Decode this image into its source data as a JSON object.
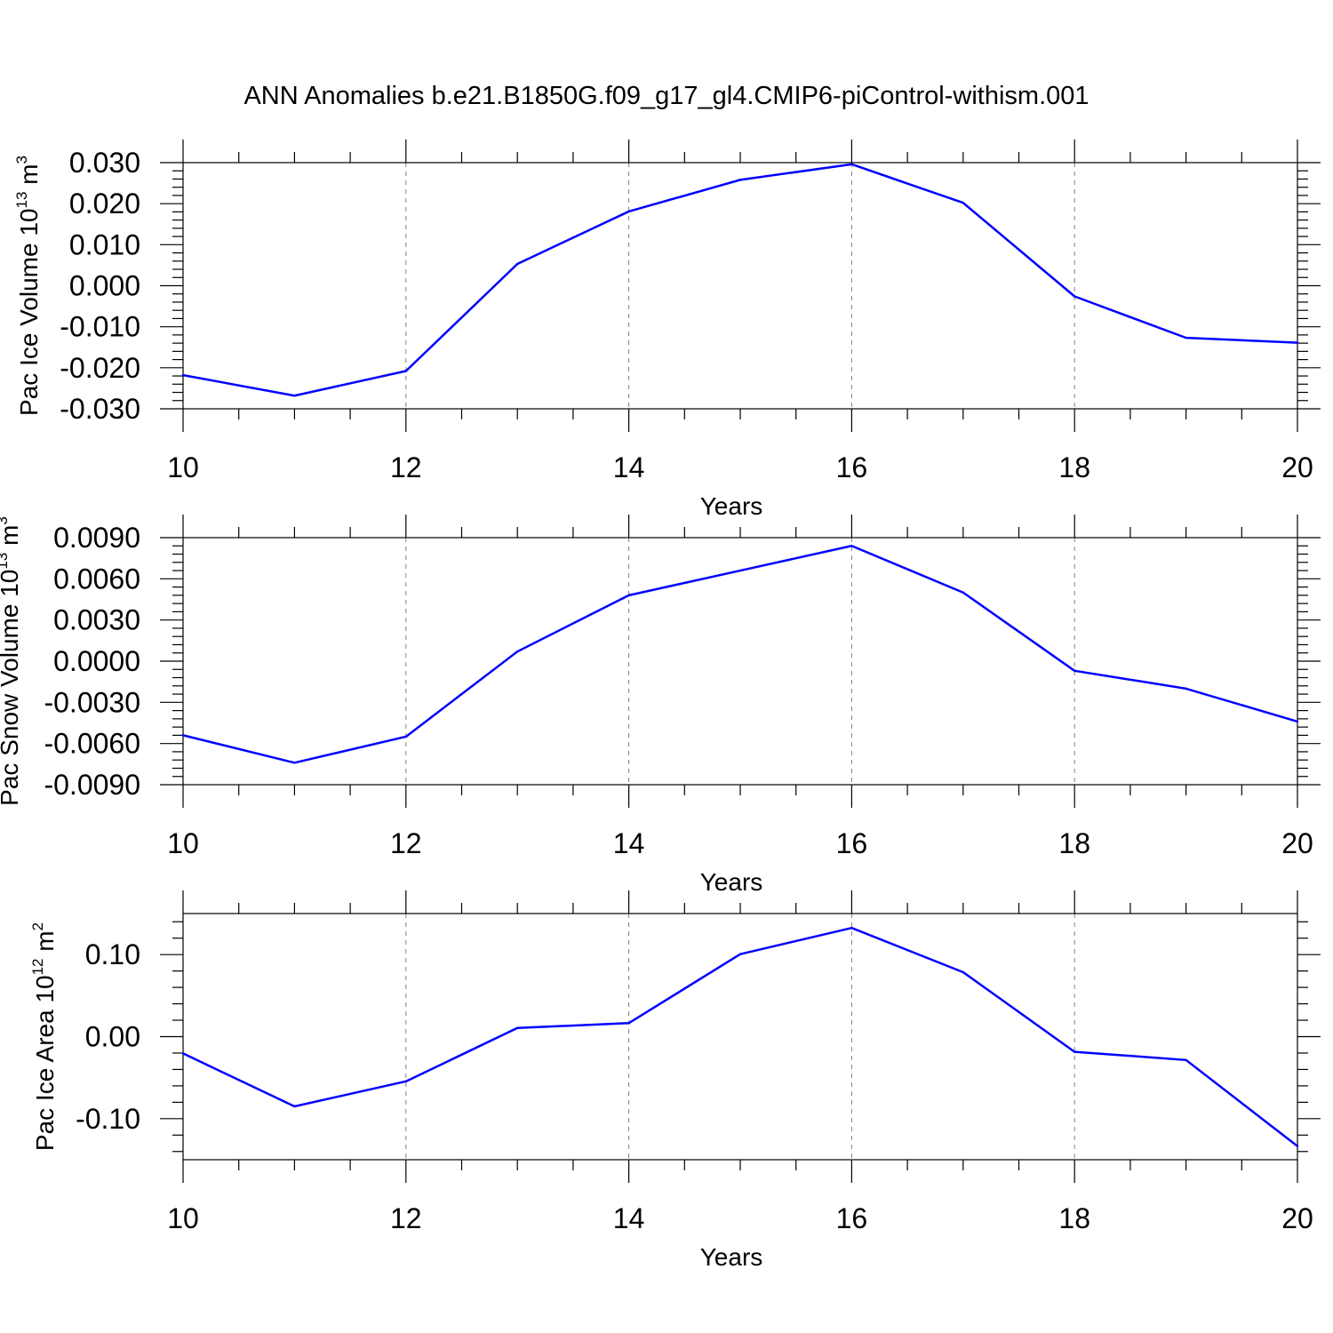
{
  "title": "ANN Anomalies b.e21.B1850G.f09_g17_gl4.CMIP6-piControl-withism.001",
  "colors": {
    "line": "#0000ff",
    "axis": "#000000",
    "grid": "#808080"
  },
  "chart_data": [
    {
      "type": "line",
      "xlabel": "Years",
      "ylabel": {
        "text": "Pac Ice Volume 10",
        "exp": "13",
        "unit": " m",
        "unit_exp": "3"
      },
      "xlim": [
        10,
        20
      ],
      "ylim": [
        -0.03,
        0.03
      ],
      "x_ticks": [
        "10",
        "12",
        "14",
        "16",
        "18",
        "20"
      ],
      "y_ticks": [
        {
          "value": 0.03,
          "label": "0.030"
        },
        {
          "value": 0.02,
          "label": "0.020"
        },
        {
          "value": 0.01,
          "label": "0.010"
        },
        {
          "value": 0.0,
          "label": "0.000"
        },
        {
          "value": -0.01,
          "label": "-0.010"
        },
        {
          "value": -0.02,
          "label": "-0.020"
        },
        {
          "value": -0.03,
          "label": "-0.030"
        }
      ],
      "grid": true,
      "x": [
        10,
        11,
        12,
        13,
        14,
        15,
        16,
        17,
        18,
        19,
        20
      ],
      "values": [
        -0.0218,
        -0.0268,
        -0.0208,
        0.0053,
        0.0181,
        0.0258,
        0.0296,
        0.0202,
        -0.0026,
        -0.0127,
        -0.0139
      ]
    },
    {
      "type": "line",
      "xlabel": "Years",
      "ylabel": {
        "text": "Pac Snow Volume 10",
        "exp": "13",
        "unit": " m",
        "unit_exp": "3"
      },
      "xlim": [
        10,
        20
      ],
      "ylim": [
        -0.009,
        0.009
      ],
      "x_ticks": [
        "10",
        "12",
        "14",
        "16",
        "18",
        "20"
      ],
      "y_ticks": [
        {
          "value": 0.009,
          "label": "0.0090"
        },
        {
          "value": 0.006,
          "label": "0.0060"
        },
        {
          "value": 0.003,
          "label": "0.0030"
        },
        {
          "value": 0.0,
          "label": "0.0000"
        },
        {
          "value": -0.003,
          "label": "-0.0030"
        },
        {
          "value": -0.006,
          "label": "-0.0060"
        },
        {
          "value": -0.009,
          "label": "-0.0090"
        }
      ],
      "grid": true,
      "x": [
        10,
        11,
        12,
        13,
        14,
        15,
        16,
        17,
        18,
        19,
        20
      ],
      "values": [
        -0.0054,
        -0.0074,
        -0.0055,
        0.0007,
        0.0048,
        0.0066,
        0.0084,
        0.005,
        -0.0007,
        -0.002,
        -0.0044
      ]
    },
    {
      "type": "line",
      "xlabel": "Years",
      "ylabel": {
        "text": "Pac Ice Area 10",
        "exp": "12",
        "unit": " m",
        "unit_exp": "2"
      },
      "xlim": [
        10,
        20
      ],
      "ylim": [
        -0.15,
        0.15
      ],
      "x_ticks": [
        "10",
        "12",
        "14",
        "16",
        "18",
        "20"
      ],
      "y_ticks": [
        {
          "value": 0.1,
          "label": "0.10"
        },
        {
          "value": 0.0,
          "label": "0.00"
        },
        {
          "value": -0.1,
          "label": "-0.10"
        }
      ],
      "grid": true,
      "x": [
        10,
        11,
        12,
        13,
        14,
        15,
        16,
        17,
        18,
        19,
        20
      ],
      "values": [
        -0.0205,
        -0.085,
        -0.0545,
        0.0105,
        0.0165,
        0.1005,
        0.1325,
        0.0785,
        -0.0185,
        -0.0285,
        -0.1335
      ]
    }
  ]
}
